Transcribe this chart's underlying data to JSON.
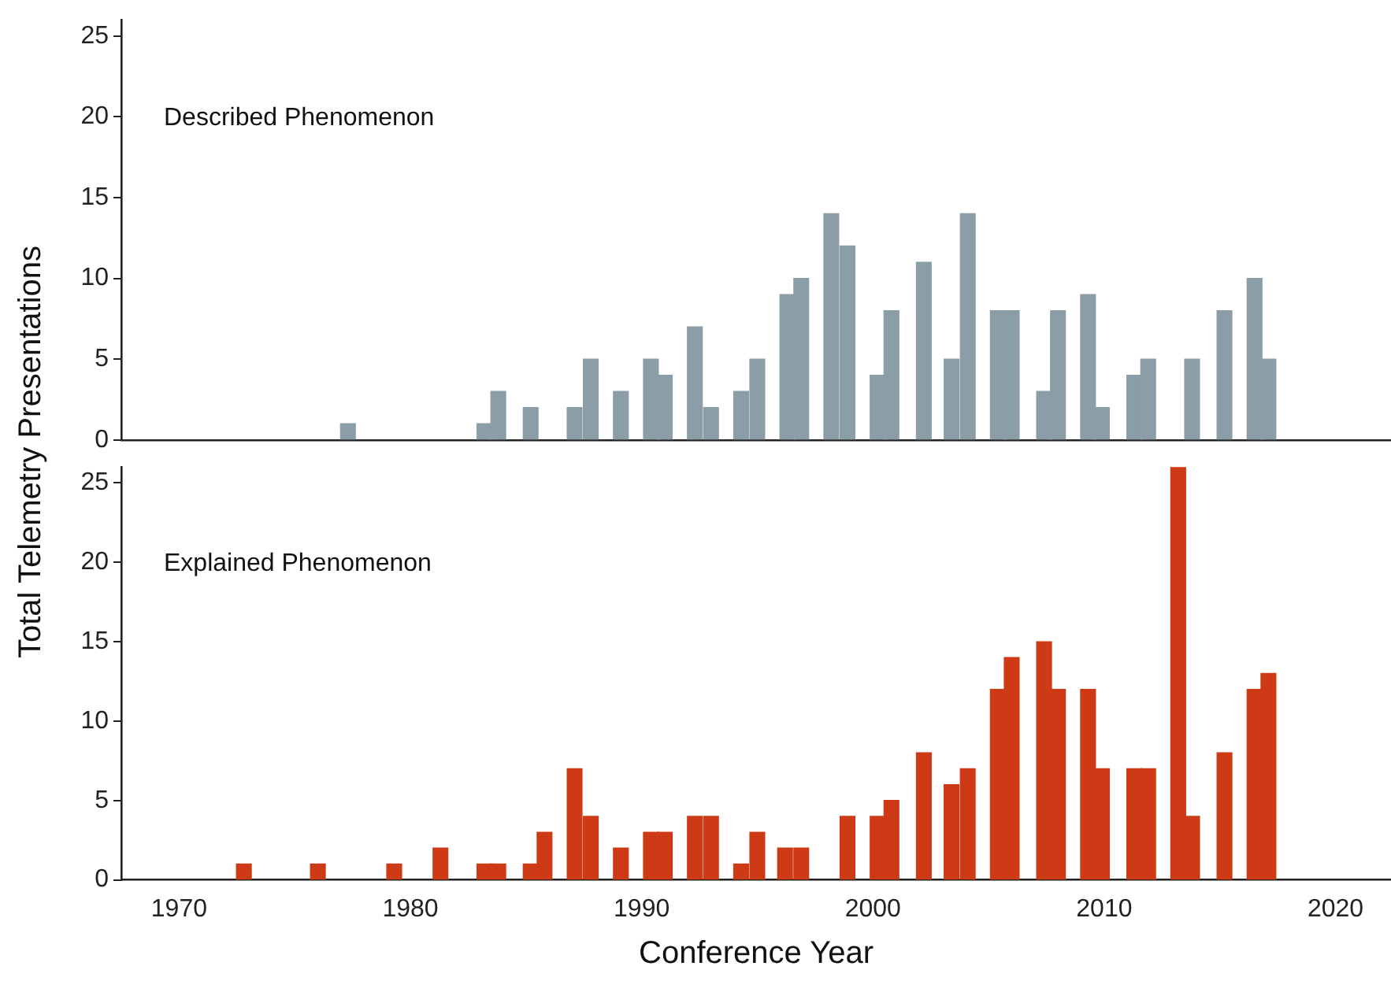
{
  "chart_data": [
    {
      "type": "bar",
      "ylabel": "Total Telemetry Presentations",
      "annotations": [
        "Described Phenomenon"
      ],
      "xlim": [
        1967.5,
        2022.4
      ],
      "ylim": [
        0,
        26
      ],
      "yticks": [
        0,
        5,
        10,
        15,
        20,
        25
      ],
      "tick_labels": "y",
      "series": [
        {
          "color": "#8b9ea7",
          "x": [
            1977.3,
            1983.2,
            1983.8,
            1985.2,
            1987.1,
            1987.8,
            1989.1,
            1990.4,
            1991.0,
            1992.3,
            1993.0,
            1994.3,
            1995.0,
            1996.3,
            1996.9,
            1998.2,
            1998.9,
            2000.2,
            2000.8,
            2002.2,
            2003.4,
            2004.1,
            2005.4,
            2006.0,
            2007.4,
            2008.0,
            2009.3,
            2009.9,
            2011.3,
            2011.9,
            2013.8,
            2015.2,
            2016.5,
            2017.1
          ],
          "values": [
            1,
            1,
            3,
            2,
            2,
            5,
            3,
            5,
            4,
            7,
            2,
            3,
            5,
            9,
            10,
            14,
            12,
            4,
            8,
            11,
            5,
            14,
            8,
            8,
            3,
            8,
            9,
            2,
            4,
            5,
            5,
            8,
            10,
            5
          ]
        }
      ]
    },
    {
      "type": "bar",
      "xlabel": "Conference Year",
      "annotations": [
        "Explained Phenomenon"
      ],
      "xlim": [
        1967.5,
        2022.4
      ],
      "xticks": [
        1970,
        1980,
        1990,
        2000,
        2010,
        2020
      ],
      "ylim": [
        0,
        26
      ],
      "yticks": [
        0,
        5,
        10,
        15,
        20,
        25
      ],
      "series": [
        {
          "color": "#cf3a16",
          "x": [
            1972.8,
            1976.0,
            1979.3,
            1981.3,
            1983.2,
            1983.8,
            1985.2,
            1985.8,
            1987.1,
            1987.8,
            1989.1,
            1990.4,
            1991.0,
            1992.3,
            1993.0,
            1994.3,
            1995.0,
            1996.2,
            1996.9,
            1998.9,
            2000.2,
            2000.8,
            2002.2,
            2003.4,
            2004.1,
            2005.4,
            2006.0,
            2007.4,
            2008.0,
            2009.3,
            2009.9,
            2011.3,
            2011.9,
            2013.2,
            2013.8,
            2015.2,
            2016.5,
            2017.1
          ],
          "values": [
            1,
            1,
            1,
            2,
            1,
            1,
            1,
            3,
            7,
            4,
            2,
            3,
            3,
            4,
            4,
            1,
            3,
            2,
            2,
            4,
            4,
            5,
            8,
            6,
            7,
            12,
            14,
            15,
            12,
            12,
            7,
            7,
            7,
            26,
            4,
            8,
            12,
            13
          ]
        }
      ]
    }
  ]
}
